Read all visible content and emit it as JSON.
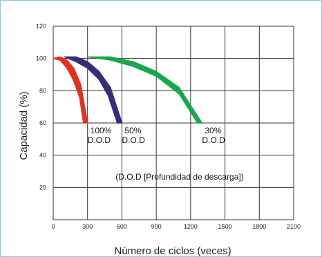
{
  "chart_data": {
    "type": "area",
    "xlabel": "Número de ciclos (veces)",
    "ylabel": "Capacidad (%)",
    "xlim": [
      0,
      2100
    ],
    "ylim": [
      0,
      120
    ],
    "x_ticks": [
      "0",
      "300",
      "600",
      "900",
      "1200",
      "1500",
      "1800",
      "2100"
    ],
    "y_ticks": [
      "20",
      "40",
      "60",
      "80",
      "100",
      "120"
    ],
    "grid": true,
    "annotation": "(D.O.D [Profundidad de descarga])",
    "series": [
      {
        "percent": "100%",
        "dod": "D.O.D",
        "color": "#e0321e",
        "upper": [
          [
            0,
            100
          ],
          [
            60,
            101
          ],
          [
            120,
            99
          ],
          [
            180,
            94
          ],
          [
            240,
            84
          ],
          [
            300,
            60
          ]
        ],
        "lower": [
          [
            0,
            100
          ],
          [
            60,
            99
          ],
          [
            120,
            94
          ],
          [
            180,
            86
          ],
          [
            230,
            76
          ],
          [
            265,
            60
          ]
        ]
      },
      {
        "percent": "50%",
        "dod": "D.O.D",
        "color": "#3a2a78",
        "upper": [
          [
            100,
            101
          ],
          [
            200,
            101
          ],
          [
            300,
            98
          ],
          [
            400,
            92
          ],
          [
            500,
            82
          ],
          [
            600,
            60
          ]
        ],
        "lower": [
          [
            100,
            101
          ],
          [
            200,
            98
          ],
          [
            300,
            94
          ],
          [
            400,
            87
          ],
          [
            480,
            77
          ],
          [
            560,
            60
          ]
        ]
      },
      {
        "percent": "30%",
        "dod": "D.O.D",
        "color": "#16a94b",
        "upper": [
          [
            300,
            101
          ],
          [
            500,
            101
          ],
          [
            700,
            98
          ],
          [
            900,
            92
          ],
          [
            1100,
            82
          ],
          [
            1300,
            60
          ]
        ],
        "lower": [
          [
            300,
            101
          ],
          [
            500,
            99
          ],
          [
            700,
            95
          ],
          [
            900,
            89
          ],
          [
            1100,
            78
          ],
          [
            1260,
            60
          ]
        ]
      }
    ]
  }
}
